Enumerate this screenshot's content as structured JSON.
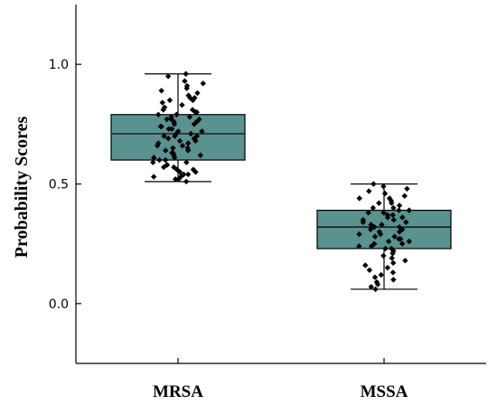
{
  "chart_data": {
    "type": "box",
    "title": "",
    "xlabel": "",
    "ylabel": "Probability Scores",
    "ylim": [
      -0.25,
      1.25
    ],
    "yticks": [
      0.0,
      0.5,
      1.0
    ],
    "ytick_labels": [
      "0.0",
      "0.5",
      "1.0"
    ],
    "categories": [
      "MRSA",
      "MSSA"
    ],
    "grid": false,
    "legend": "none",
    "box_color": "#5a9290",
    "point_color": "#000000",
    "boxes": [
      {
        "category": "MRSA",
        "whisker_low": 0.51,
        "q1": 0.6,
        "median": 0.71,
        "q3": 0.79,
        "whisker_high": 0.96,
        "points": [
          0.96,
          0.95,
          0.93,
          0.92,
          0.91,
          0.9,
          0.89,
          0.88,
          0.87,
          0.86,
          0.86,
          0.85,
          0.85,
          0.84,
          0.83,
          0.82,
          0.81,
          0.81,
          0.8,
          0.8,
          0.79,
          0.79,
          0.78,
          0.78,
          0.77,
          0.77,
          0.77,
          0.76,
          0.76,
          0.75,
          0.75,
          0.74,
          0.74,
          0.73,
          0.73,
          0.72,
          0.72,
          0.71,
          0.71,
          0.7,
          0.7,
          0.7,
          0.69,
          0.69,
          0.68,
          0.68,
          0.67,
          0.67,
          0.66,
          0.66,
          0.65,
          0.65,
          0.64,
          0.64,
          0.63,
          0.63,
          0.62,
          0.62,
          0.61,
          0.61,
          0.6,
          0.6,
          0.59,
          0.59,
          0.58,
          0.58,
          0.57,
          0.57,
          0.56,
          0.56,
          0.55,
          0.55,
          0.54,
          0.54,
          0.53,
          0.53,
          0.52,
          0.52,
          0.51
        ]
      },
      {
        "category": "MSSA",
        "whisker_low": 0.06,
        "q1": 0.23,
        "median": 0.32,
        "q3": 0.39,
        "whisker_high": 0.5,
        "points": [
          0.5,
          0.49,
          0.48,
          0.47,
          0.46,
          0.45,
          0.44,
          0.44,
          0.43,
          0.42,
          0.42,
          0.41,
          0.4,
          0.4,
          0.39,
          0.39,
          0.38,
          0.38,
          0.37,
          0.37,
          0.36,
          0.36,
          0.35,
          0.35,
          0.34,
          0.34,
          0.33,
          0.33,
          0.32,
          0.32,
          0.31,
          0.31,
          0.3,
          0.3,
          0.29,
          0.29,
          0.28,
          0.28,
          0.27,
          0.27,
          0.26,
          0.26,
          0.25,
          0.25,
          0.24,
          0.24,
          0.23,
          0.23,
          0.22,
          0.21,
          0.2,
          0.19,
          0.18,
          0.17,
          0.16,
          0.15,
          0.14,
          0.13,
          0.12,
          0.11,
          0.1,
          0.09,
          0.08,
          0.07,
          0.06
        ]
      }
    ]
  }
}
